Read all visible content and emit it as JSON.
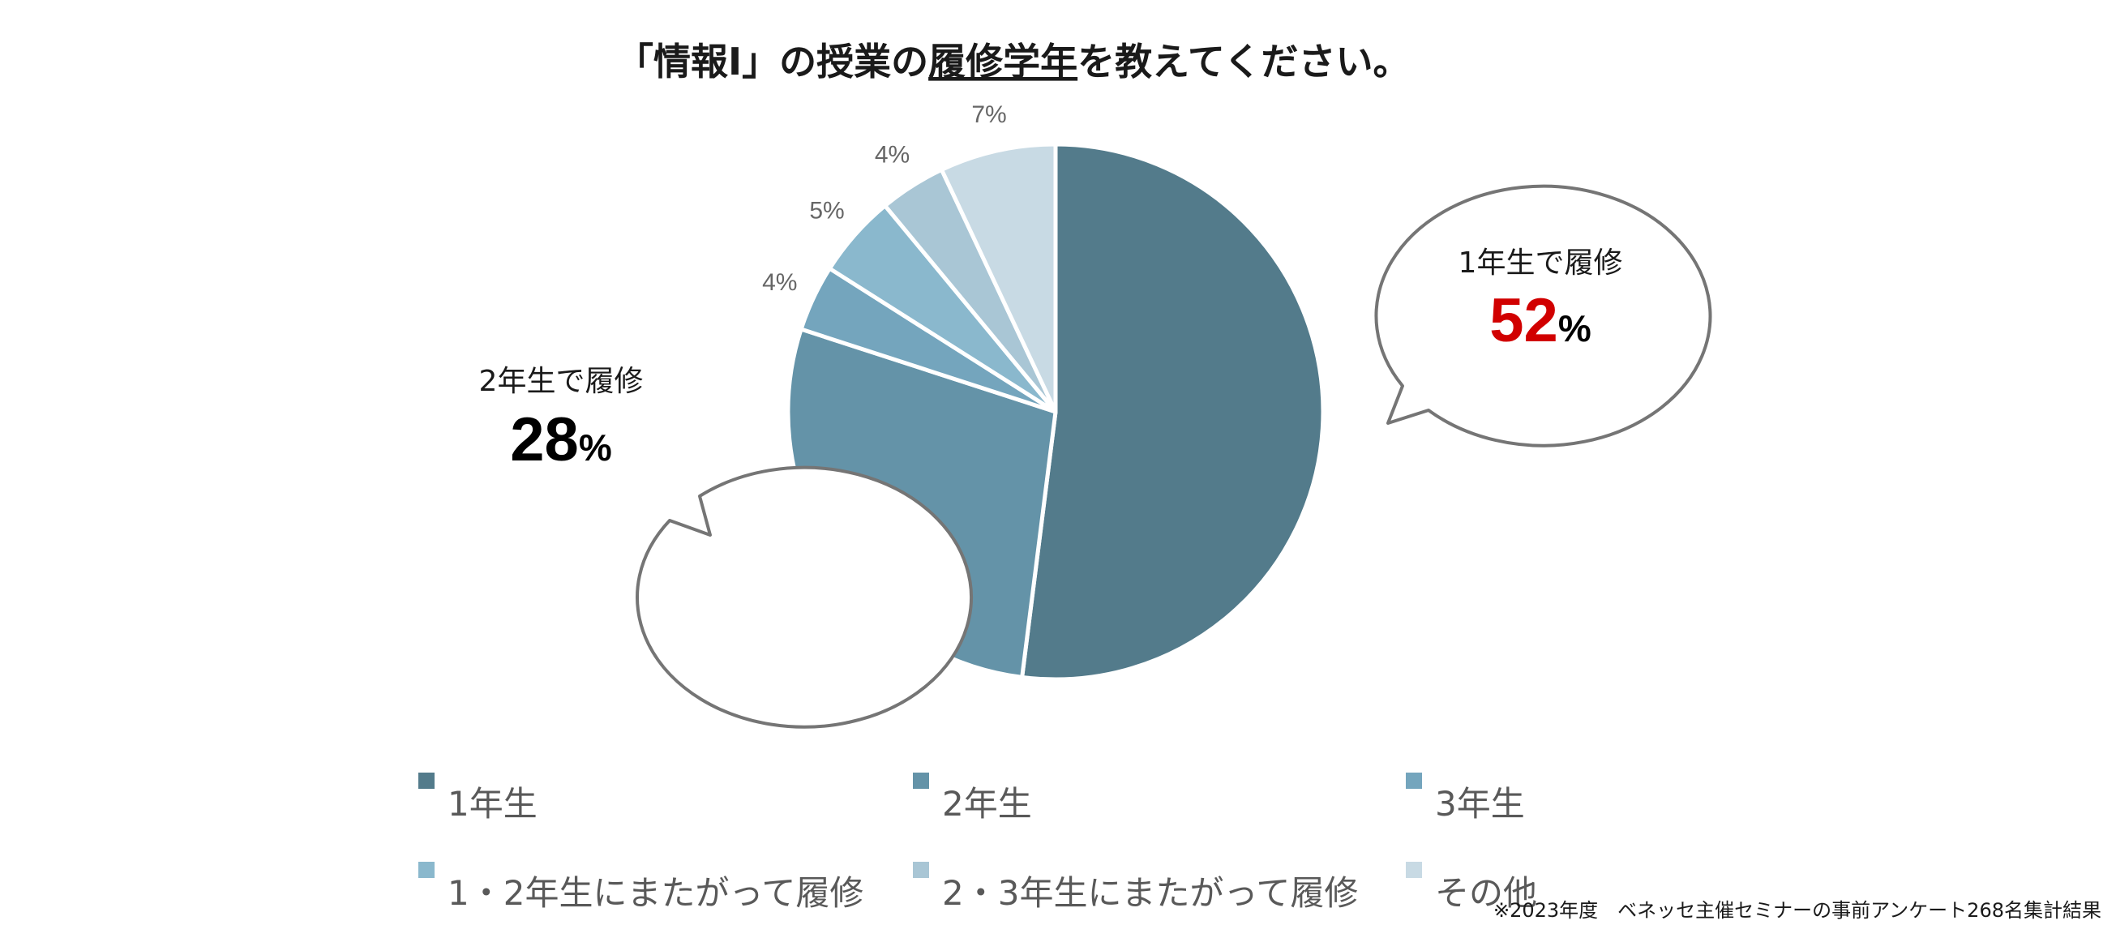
{
  "chart_data": {
    "type": "pie",
    "title": {
      "prefix": "「情報Ⅰ」の授業の",
      "underlined": "履修学年",
      "suffix": "を教えてください。"
    },
    "unit": "%",
    "slices": [
      {
        "label": "1年生",
        "value": 52,
        "pct_text": "",
        "color": "#537b8b"
      },
      {
        "label": "2年生",
        "value": 28,
        "pct_text": "",
        "color": "#6493a8"
      },
      {
        "label": "3年生",
        "value": 4,
        "pct_text": "4%",
        "color": "#74a5bd"
      },
      {
        "label": "1・2年生にまたがって履修",
        "value": 5,
        "pct_text": "5%",
        "color": "#8ab8cd"
      },
      {
        "label": "2・3年生にまたがって履修",
        "value": 4,
        "pct_text": "4%",
        "color": "#a9c6d5"
      },
      {
        "label": "その他",
        "value": 7,
        "pct_text": "7%",
        "color": "#c8dae4"
      }
    ],
    "callouts": [
      {
        "caption": "1年生で履修",
        "value": "52",
        "unit": "%",
        "value_color": "#d10000"
      },
      {
        "caption": "2年生で履修",
        "value": "28",
        "unit": "%",
        "value_color": "#000000"
      }
    ],
    "legend_position": "bottom"
  },
  "footnote": "※2023年度　ベネッセ主催セミナーの事前アンケート268名集計結果"
}
